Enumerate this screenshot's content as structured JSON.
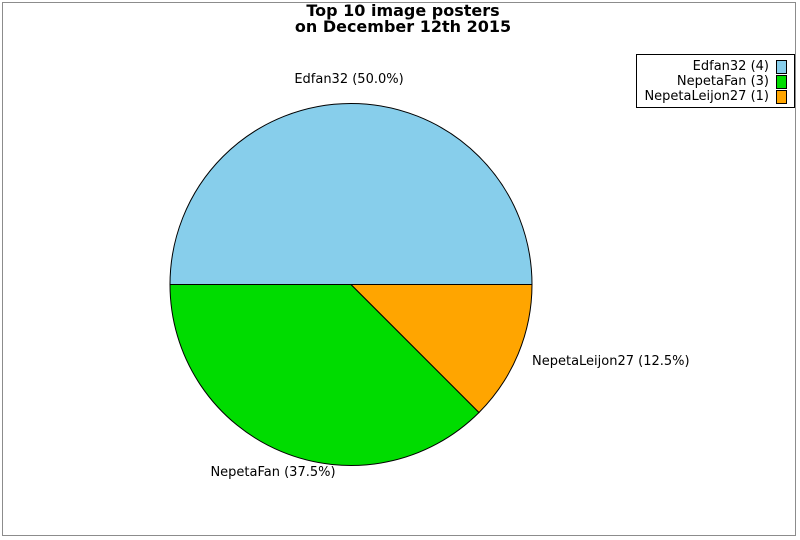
{
  "chart_data": {
    "type": "pie",
    "title": "Top 10 image posters",
    "subtitle": "on December 12th 2015",
    "total": 8,
    "start_angle_deg": 0,
    "direction": "counterclockwise",
    "legend_position": "upper-right",
    "slices": [
      {
        "name": "Edfan32",
        "value": 4,
        "pct": 50.0,
        "color": "#87CEEB",
        "label": "Edfan32 (50.0%)",
        "legend_label": "Edfan32 (4)"
      },
      {
        "name": "NepetaFan",
        "value": 3,
        "pct": 37.5,
        "color": "#00DC00",
        "label": "NepetaFan (37.5%)",
        "legend_label": "NepetaFan (3)"
      },
      {
        "name": "NepetaLeijon27",
        "value": 1,
        "pct": 12.5,
        "color": "#FFA500",
        "label": "NepetaLeijon27 (12.5%)",
        "legend_label": "NepetaLeijon27 (1)"
      }
    ]
  }
}
